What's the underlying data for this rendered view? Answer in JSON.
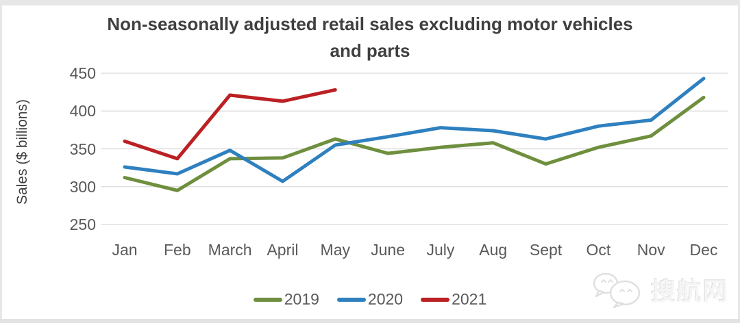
{
  "chart_data": {
    "type": "line",
    "title": "Non-seasonally adjusted retail sales excluding motor vehicles and parts",
    "xlabel": "",
    "ylabel": "Sales ($ billions)",
    "categories": [
      "Jan",
      "Feb",
      "March",
      "April",
      "May",
      "June",
      "July",
      "Aug",
      "Sept",
      "Oct",
      "Nov",
      "Dec"
    ],
    "series": [
      {
        "name": "2019",
        "color": "#6E8F3E",
        "values": [
          312,
          295,
          337,
          338,
          363,
          344,
          352,
          358,
          330,
          352,
          367,
          418
        ]
      },
      {
        "name": "2020",
        "color": "#2E80BF",
        "values": [
          326,
          317,
          348,
          307,
          355,
          366,
          378,
          374,
          363,
          380,
          388,
          443
        ]
      },
      {
        "name": "2021",
        "color": "#BB2024",
        "values": [
          360,
          337,
          421,
          413,
          428,
          null,
          null,
          null,
          null,
          null,
          null,
          null
        ]
      }
    ],
    "ylim": [
      250,
      450
    ],
    "yticks": [
      250,
      300,
      350,
      400,
      450
    ],
    "grid": true,
    "legend_position": "bottom"
  },
  "watermark": {
    "text": "搜航网"
  }
}
